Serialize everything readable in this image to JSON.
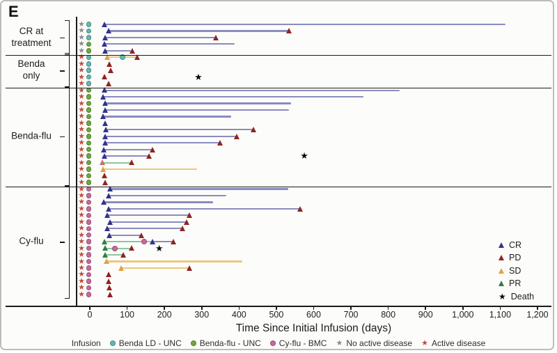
{
  "panel_label": "E",
  "axis": {
    "title": "Time Since Initial Infusion (days)",
    "tick_labels": [
      "0",
      "100",
      "200",
      "300",
      "400",
      "500",
      "600",
      "700",
      "800",
      "900",
      "1,000",
      "1,100",
      "1,200"
    ],
    "tick_values": [
      0,
      100,
      200,
      300,
      400,
      500,
      600,
      700,
      800,
      900,
      1000,
      1100,
      1200
    ]
  },
  "chart_data": {
    "type": "swimmer",
    "xlabel": "Time Since Initial Infusion (days)",
    "xlim": [
      0,
      1200
    ],
    "groups": [
      {
        "label": "CR at\ntreatment",
        "rows": [
          {
            "status": "red_star_no",
            "infusion": "teal",
            "events": [
              [
                40,
                "cr"
              ]
            ],
            "segments": [
              [
                40,
                1115,
                "cr"
              ]
            ]
          },
          {
            "status": "red_star_no",
            "infusion": "teal",
            "events": [
              [
                52,
                "cr"
              ],
              [
                535,
                "pd"
              ]
            ],
            "segments": [
              [
                52,
                535,
                "cr"
              ]
            ]
          },
          {
            "status": "red_star_no",
            "infusion": "teal",
            "events": [
              [
                42,
                "cr"
              ],
              [
                340,
                "pd"
              ]
            ],
            "segments": [
              [
                42,
                340,
                "cr"
              ]
            ]
          },
          {
            "status": "red_star_no",
            "infusion": "green",
            "events": [
              [
                40,
                "cr"
              ]
            ],
            "segments": [
              [
                40,
                388,
                "cr"
              ]
            ]
          },
          {
            "status": "red_star_no",
            "infusion": "green",
            "events": [
              [
                43,
                "cr"
              ],
              [
                115,
                "pd"
              ]
            ],
            "segments": [
              [
                43,
                110,
                "cr"
              ]
            ]
          }
        ]
      },
      {
        "label": "Benda\nonly",
        "rows": [
          {
            "status": "red_star",
            "infusion": "teal",
            "events": [
              [
                48,
                "sd"
              ],
              [
                87,
                "teal"
              ],
              [
                128,
                "pd"
              ]
            ],
            "segments": [
              [
                48,
                125,
                "sd"
              ]
            ]
          },
          {
            "status": "red_star",
            "infusion": "teal",
            "events": [
              [
                53,
                "pd"
              ]
            ],
            "segments": []
          },
          {
            "status": "red_star",
            "infusion": "teal",
            "events": [
              [
                58,
                "pd"
              ]
            ],
            "segments": []
          },
          {
            "status": "red_star",
            "infusion": "teal",
            "events": [
              [
                40,
                "pd"
              ],
              [
                291,
                "death"
              ]
            ],
            "segments": []
          },
          {
            "status": "red_star",
            "infusion": "teal",
            "events": [
              [
                52,
                "pd"
              ]
            ],
            "segments": []
          }
        ]
      },
      {
        "label": "Benda-flu",
        "rows": [
          {
            "status": "red_star",
            "infusion": "green",
            "events": [
              [
                40,
                "cr"
              ]
            ],
            "segments": [
              [
                40,
                830,
                "cr"
              ]
            ]
          },
          {
            "status": "red_star",
            "infusion": "green",
            "events": [
              [
                37,
                "cr"
              ]
            ],
            "segments": [
              [
                37,
                733,
                "cr"
              ]
            ]
          },
          {
            "status": "red_star",
            "infusion": "green",
            "events": [
              [
                42,
                "cr"
              ]
            ],
            "segments": [
              [
                42,
                540,
                "cr"
              ]
            ]
          },
          {
            "status": "red_star",
            "infusion": "green",
            "events": [
              [
                42,
                "cr"
              ]
            ],
            "segments": [
              [
                42,
                533,
                "cr"
              ]
            ]
          },
          {
            "status": "red_star",
            "infusion": "green",
            "events": [
              [
                37,
                "cr"
              ]
            ],
            "segments": [
              [
                37,
                378,
                "cr"
              ]
            ]
          },
          {
            "status": "red_star",
            "infusion": "green",
            "events": [
              [
                42,
                "cr"
              ]
            ],
            "segments": []
          },
          {
            "status": "red_star",
            "infusion": "green",
            "events": [
              [
                45,
                "cr"
              ],
              [
                440,
                "pd"
              ]
            ],
            "segments": [
              [
                45,
                440,
                "cr"
              ]
            ]
          },
          {
            "status": "red_star",
            "infusion": "green",
            "events": [
              [
                42,
                "cr"
              ],
              [
                396,
                "pd"
              ]
            ],
            "segments": [
              [
                42,
                396,
                "cr"
              ]
            ]
          },
          {
            "status": "red_star",
            "infusion": "green",
            "events": [
              [
                42,
                "cr"
              ],
              [
                350,
                "pd"
              ]
            ],
            "segments": [
              [
                42,
                350,
                "cr"
              ]
            ]
          },
          {
            "status": "red_star",
            "infusion": "green",
            "events": [
              [
                38,
                "cr"
              ],
              [
                170,
                "pd"
              ]
            ],
            "segments": [
              [
                38,
                170,
                "cr"
              ]
            ]
          },
          {
            "status": "red_star",
            "infusion": "green",
            "events": [
              [
                40,
                "cr"
              ],
              [
                161,
                "pd"
              ],
              [
                575,
                "death"
              ]
            ],
            "segments": [
              [
                40,
                161,
                "cr"
              ]
            ]
          },
          {
            "status": "red_star",
            "infusion": "green",
            "events": [
              [
                35,
                "pd_light"
              ],
              [
                114,
                "pd"
              ]
            ],
            "segments": [
              [
                35,
                114,
                "pr"
              ]
            ]
          },
          {
            "status": "red_star",
            "infusion": "green",
            "events": [
              [
                37,
                "sd"
              ]
            ],
            "segments": [
              [
                37,
                287,
                "sd"
              ]
            ]
          },
          {
            "status": "red_star",
            "infusion": "green",
            "events": [
              [
                40,
                "pd"
              ]
            ],
            "segments": []
          },
          {
            "status": "red_star",
            "infusion": "green",
            "events": [
              [
                42,
                "pd"
              ]
            ],
            "segments": []
          }
        ]
      },
      {
        "label": "Cy-flu",
        "rows": [
          {
            "status": "red_star",
            "infusion": "pink",
            "events": [
              [
                55,
                "cr"
              ]
            ],
            "segments": [
              [
                55,
                532,
                "cr"
              ]
            ]
          },
          {
            "status": "red_star",
            "infusion": "pink",
            "events": [
              [
                52,
                "cr"
              ]
            ],
            "segments": [
              [
                52,
                365,
                "cr"
              ]
            ]
          },
          {
            "status": "red_star",
            "infusion": "pink",
            "events": [
              [
                39,
                "cr"
              ]
            ],
            "segments": [
              [
                39,
                331,
                "cr"
              ]
            ]
          },
          {
            "status": "red_star",
            "infusion": "pink",
            "events": [
              [
                52,
                "cr"
              ],
              [
                566,
                "pd"
              ]
            ],
            "segments": [
              [
                52,
                566,
                "cr"
              ]
            ]
          },
          {
            "status": "red_star",
            "infusion": "pink",
            "events": [
              [
                49,
                "cr"
              ],
              [
                268,
                "pd"
              ]
            ],
            "segments": [
              [
                49,
                268,
                "cr"
              ]
            ]
          },
          {
            "status": "red_star",
            "infusion": "pink",
            "events": [
              [
                56,
                "cr"
              ],
              [
                260,
                "pd"
              ]
            ],
            "segments": [
              [
                56,
                260,
                "cr"
              ]
            ]
          },
          {
            "status": "red_star",
            "infusion": "pink",
            "events": [
              [
                49,
                "cr"
              ],
              [
                250,
                "pd"
              ]
            ],
            "segments": [
              [
                49,
                250,
                "cr"
              ]
            ]
          },
          {
            "status": "red_star",
            "infusion": "pink",
            "events": [
              [
                54,
                "cr"
              ],
              [
                140,
                "pd"
              ]
            ],
            "segments": [
              [
                54,
                140,
                "cr"
              ]
            ]
          },
          {
            "status": "red_star",
            "infusion": "pink",
            "events": [
              [
                40,
                "pr"
              ],
              [
                145,
                "pink"
              ],
              [
                170,
                "cr"
              ],
              [
                226,
                "pd"
              ]
            ],
            "segments": [
              [
                40,
                168,
                "pr"
              ],
              [
                168,
                226,
                "cr"
              ]
            ]
          },
          {
            "status": "red_star",
            "infusion": "pink",
            "events": [
              [
                42,
                "pr"
              ],
              [
                67,
                "pink"
              ],
              [
                114,
                "pd"
              ],
              [
                186,
                "death"
              ]
            ],
            "segments": [
              [
                42,
                114,
                "pr"
              ]
            ]
          },
          {
            "status": "red_star",
            "infusion": "pink",
            "events": [
              [
                43,
                "pr"
              ],
              [
                92,
                "pd"
              ]
            ],
            "segments": [
              [
                43,
                92,
                "pr"
              ]
            ]
          },
          {
            "status": "red_star",
            "infusion": "pink",
            "events": [
              [
                46,
                "sd"
              ]
            ],
            "segments": [
              [
                46,
                408,
                "sd"
              ]
            ]
          },
          {
            "status": "red_star",
            "infusion": "pink",
            "events": [
              [
                85,
                "sd"
              ],
              [
                268,
                "pd"
              ]
            ],
            "segments": [
              [
                85,
                268,
                "sd"
              ]
            ]
          },
          {
            "status": "red_star",
            "infusion": "pink",
            "events": [
              [
                51,
                "pd"
              ]
            ],
            "segments": []
          },
          {
            "status": "red_star",
            "infusion": "pink",
            "events": [
              [
                51,
                "pd"
              ]
            ],
            "segments": []
          },
          {
            "status": "red_star",
            "infusion": "pink",
            "events": [
              [
                53,
                "pd"
              ]
            ],
            "segments": []
          },
          {
            "status": "red_star",
            "infusion": "pink",
            "events": [
              [
                56,
                "pd"
              ]
            ],
            "segments": []
          }
        ]
      }
    ],
    "marker_legend": [
      {
        "key": "cr",
        "label": "CR"
      },
      {
        "key": "pd",
        "label": "PD"
      },
      {
        "key": "sd",
        "label": "SD"
      },
      {
        "key": "pr",
        "label": "PR"
      },
      {
        "key": "death",
        "label": "Death"
      }
    ],
    "infusion_legend": {
      "title": "Infusion",
      "items": [
        {
          "key": "teal",
          "label": "Benda LD - UNC"
        },
        {
          "key": "green",
          "label": "Benda-flu - UNC"
        },
        {
          "key": "pink",
          "label": "Cy-flu - BMC"
        },
        {
          "key": "gray_star",
          "label": "No active disease"
        },
        {
          "key": "red_star",
          "label": "Active disease"
        }
      ]
    }
  },
  "colors": {
    "cr": "#32338e",
    "cr_line": "#8a8bc0",
    "pd": "#8e2423",
    "pd_light": "#c4746c",
    "sd": "#dfa33f",
    "sd_line": "#ecc77e",
    "pr": "#2f7d46",
    "pr_line": "#8cc79c",
    "death": "#0a0a0a",
    "teal": "#63b8b2",
    "green": "#6fa83f",
    "pink": "#c76a9d",
    "gray_star": "#8b8b8b",
    "red_star": "#bf4b3c"
  }
}
